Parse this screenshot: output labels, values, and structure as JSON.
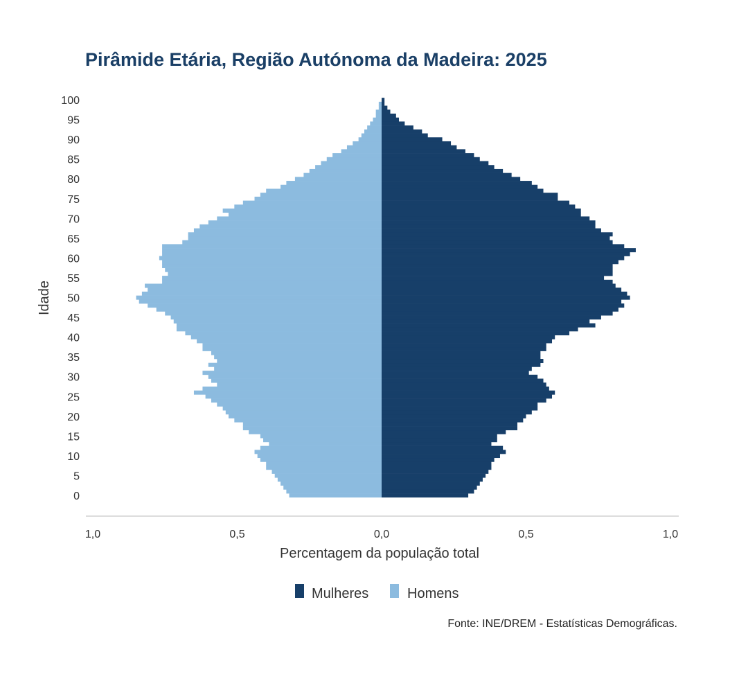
{
  "chart_data": {
    "type": "bar",
    "orientation": "horizontal-pyramid",
    "title": "Pirâmide Etária, Região Autónoma da Madeira: 2025",
    "xlabel": "Percentagem da população total",
    "ylabel": "Idade",
    "xlim": [
      -1.0,
      1.0
    ],
    "ylim": [
      0,
      100
    ],
    "x_ticks": [
      "1,0",
      "0,5",
      "0,0",
      "0,5",
      "1,0"
    ],
    "y_ticks": [
      "0",
      "5",
      "10",
      "15",
      "20",
      "25",
      "30",
      "35",
      "40",
      "45",
      "50",
      "55",
      "60",
      "65",
      "70",
      "75",
      "80",
      "85",
      "90",
      "95",
      "100"
    ],
    "categories": [
      0,
      1,
      2,
      3,
      4,
      5,
      6,
      7,
      8,
      9,
      10,
      11,
      12,
      13,
      14,
      15,
      16,
      17,
      18,
      19,
      20,
      21,
      22,
      23,
      24,
      25,
      26,
      27,
      28,
      29,
      30,
      31,
      32,
      33,
      34,
      35,
      36,
      37,
      38,
      39,
      40,
      41,
      42,
      43,
      44,
      45,
      46,
      47,
      48,
      49,
      50,
      51,
      52,
      53,
      54,
      55,
      56,
      57,
      58,
      59,
      60,
      61,
      62,
      63,
      64,
      65,
      66,
      67,
      68,
      69,
      70,
      71,
      72,
      73,
      74,
      75,
      76,
      77,
      78,
      79,
      80,
      81,
      82,
      83,
      84,
      85,
      86,
      87,
      88,
      89,
      90,
      91,
      92,
      93,
      94,
      95,
      96,
      97,
      98,
      99,
      100
    ],
    "series": [
      {
        "name": "Mulheres",
        "color": "#173f69",
        "values": [
          0.3,
          0.32,
          0.33,
          0.34,
          0.35,
          0.36,
          0.37,
          0.38,
          0.38,
          0.39,
          0.41,
          0.43,
          0.42,
          0.38,
          0.4,
          0.4,
          0.43,
          0.47,
          0.47,
          0.49,
          0.5,
          0.52,
          0.54,
          0.54,
          0.57,
          0.59,
          0.6,
          0.58,
          0.57,
          0.56,
          0.54,
          0.51,
          0.52,
          0.55,
          0.56,
          0.55,
          0.55,
          0.57,
          0.57,
          0.59,
          0.6,
          0.65,
          0.68,
          0.74,
          0.72,
          0.76,
          0.8,
          0.82,
          0.84,
          0.83,
          0.86,
          0.85,
          0.83,
          0.81,
          0.8,
          0.77,
          0.8,
          0.8,
          0.8,
          0.82,
          0.84,
          0.86,
          0.88,
          0.84,
          0.8,
          0.79,
          0.8,
          0.76,
          0.74,
          0.74,
          0.72,
          0.69,
          0.69,
          0.67,
          0.65,
          0.61,
          0.61,
          0.56,
          0.54,
          0.52,
          0.48,
          0.45,
          0.42,
          0.39,
          0.37,
          0.34,
          0.32,
          0.29,
          0.26,
          0.24,
          0.21,
          0.16,
          0.14,
          0.11,
          0.08,
          0.06,
          0.05,
          0.03,
          0.02,
          0.01,
          0.01
        ]
      },
      {
        "name": "Homens",
        "color": "#8cbbdf",
        "values": [
          0.32,
          0.33,
          0.34,
          0.35,
          0.36,
          0.37,
          0.38,
          0.4,
          0.4,
          0.42,
          0.43,
          0.44,
          0.42,
          0.39,
          0.41,
          0.42,
          0.46,
          0.48,
          0.48,
          0.51,
          0.53,
          0.54,
          0.55,
          0.57,
          0.59,
          0.61,
          0.65,
          0.62,
          0.57,
          0.59,
          0.6,
          0.62,
          0.58,
          0.6,
          0.57,
          0.58,
          0.59,
          0.62,
          0.62,
          0.64,
          0.66,
          0.68,
          0.71,
          0.71,
          0.72,
          0.73,
          0.75,
          0.78,
          0.81,
          0.84,
          0.85,
          0.83,
          0.81,
          0.82,
          0.76,
          0.76,
          0.74,
          0.75,
          0.76,
          0.76,
          0.77,
          0.76,
          0.76,
          0.76,
          0.69,
          0.67,
          0.67,
          0.65,
          0.63,
          0.6,
          0.57,
          0.53,
          0.55,
          0.51,
          0.48,
          0.44,
          0.42,
          0.4,
          0.35,
          0.33,
          0.3,
          0.27,
          0.25,
          0.23,
          0.21,
          0.19,
          0.17,
          0.14,
          0.12,
          0.1,
          0.08,
          0.07,
          0.06,
          0.05,
          0.04,
          0.03,
          0.02,
          0.02,
          0.01,
          0.01,
          0.0
        ]
      }
    ],
    "legend": [
      "Mulheres",
      "Homens"
    ],
    "legend_position": "bottom",
    "grid": false,
    "source": "Fonte: INE/DREM - Estatísticas Demográficas."
  }
}
